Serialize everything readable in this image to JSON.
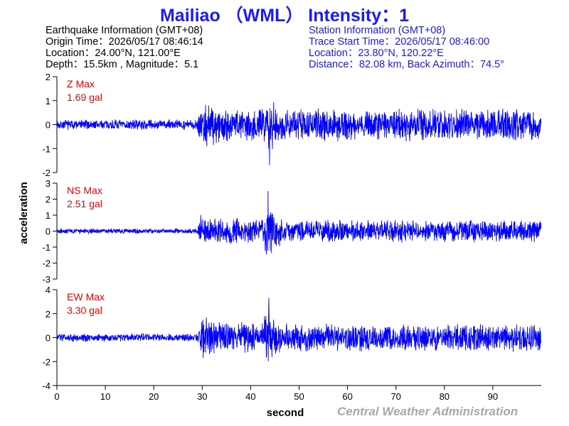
{
  "title": "Mailiao （WML） Intensity：1",
  "earthquake_info": {
    "heading": "Earthquake Information  (GMT+08)",
    "origin_time": "Origin Time：2026/05/17 08:46:14",
    "location": "Location：24.00°N, 121.00°E",
    "depth_magnitude": "Depth：15.5km , Magnitude：5.1"
  },
  "station_info": {
    "heading": "Station Information  (GMT+08)",
    "trace_start": "Trace Start Time：2026/05/17 08:46:00",
    "location": "Location：23.80°N, 120.22°E",
    "distance": "Distance：82.08 km, Back Azimuth：74.5°"
  },
  "credit": "Central Weather Administration",
  "colors": {
    "title": "#1a1aff",
    "trace": "#0000ff",
    "max_label": "#ee0000",
    "credit": "#a8a8a8"
  },
  "chart_data": {
    "type": "line",
    "xlabel": "second",
    "ylabel": "acceleration",
    "xlim": [
      0,
      100
    ],
    "xticks": [
      0,
      10,
      20,
      30,
      40,
      50,
      60,
      70,
      80,
      90
    ],
    "grid": false,
    "panels": [
      {
        "component": "Z",
        "label": "Z Max",
        "max_text": "1.69 gal",
        "peak_gal": 1.69,
        "ylim": [
          -2,
          2
        ],
        "yticks": [
          -2,
          -1,
          0,
          1,
          2
        ],
        "noise_before_p": 0.1,
        "p_arrival_s": 29,
        "p_level": 0.38,
        "s_arrival_s": 40,
        "s_peak_time_s": 44,
        "coda_level": 0.12,
        "seed": 7
      },
      {
        "component": "NS",
        "label": "NS Max",
        "max_text": "2.51 gal",
        "peak_gal": 2.51,
        "ylim": [
          -3,
          3
        ],
        "yticks": [
          -3,
          -2,
          -1,
          0,
          1,
          2,
          3
        ],
        "noise_before_p": 0.05,
        "p_arrival_s": 29,
        "p_level": 0.3,
        "s_arrival_s": 40,
        "s_peak_time_s": 43.5,
        "coda_level": 0.14,
        "seed": 19
      },
      {
        "component": "EW",
        "label": "EW Max",
        "max_text": "3.30 gal",
        "peak_gal": 3.3,
        "ylim": [
          -4,
          4
        ],
        "yticks": [
          -4,
          -2,
          0,
          2,
          4
        ],
        "noise_before_p": 0.08,
        "p_arrival_s": 29,
        "p_level": 0.35,
        "s_arrival_s": 40,
        "s_peak_time_s": 43.5,
        "coda_level": 0.18,
        "seed": 31
      }
    ]
  }
}
